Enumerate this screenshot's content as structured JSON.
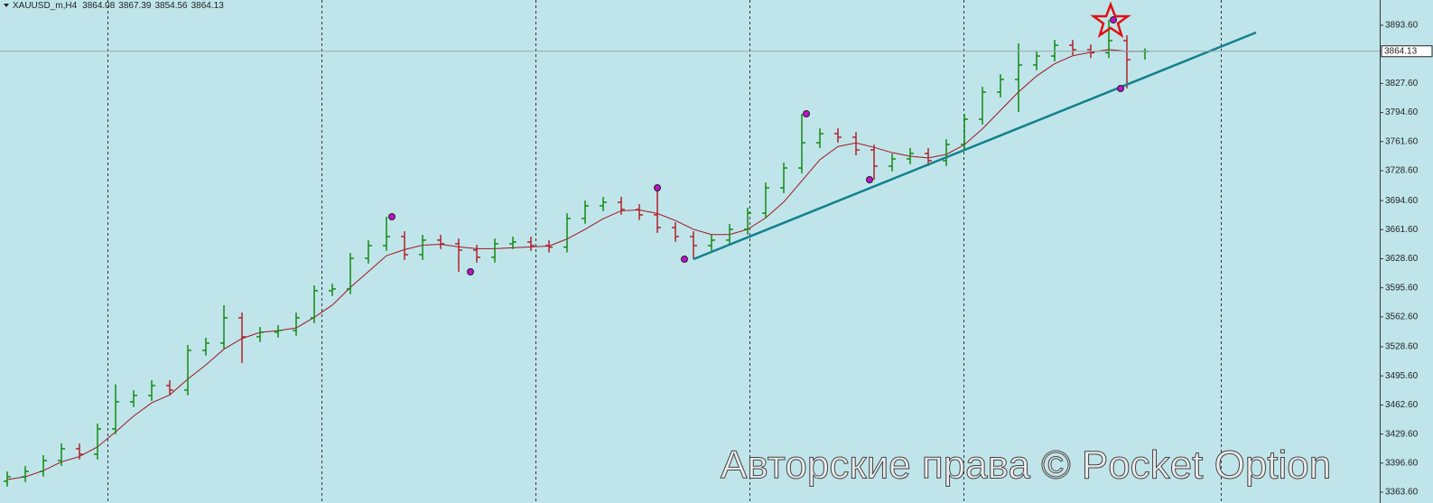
{
  "chart_data": {
    "type": "ohlc",
    "title": "XAUUSD_m,H4",
    "watermark": "Авторские права © Pocket Option",
    "up_color": "#138a13",
    "down_color": "#b3202a",
    "open": [
      3376.0,
      3381.1,
      3387.2,
      3399.5,
      3412.9,
      3406.7,
      3435.4,
      3466.2,
      3473.3,
      3484.6,
      3479.5,
      3524.6,
      3532.8,
      3561.5,
      3540.0,
      3545.1,
      3547.2,
      3561.5,
      3592.3,
      3594.3,
      3629.1,
      3643.5,
      3653.8,
      3633.2,
      3649.7,
      3645.6,
      3638.4,
      3630.2,
      3645.6,
      3647.6,
      3643.5,
      3641.8,
      3674.3,
      3688.6,
      3692.7,
      3684.5,
      3678.4,
      3664.0,
      3653.8,
      3643.5,
      3649.7,
      3662.0,
      3680.4,
      3709.1,
      3731.6,
      3760.3,
      3770.6,
      3766.5,
      3752.1,
      3733.7,
      3741.9,
      3748.1,
      3739.9,
      3758.3,
      3787.0,
      3817.7,
      3832.1,
      3848.5,
      3858.7,
      3871.0,
      3865.9,
      3862.4,
      3876.2,
      3864.08
    ],
    "high": [
      3387.1,
      3393.2,
      3405.5,
      3418.9,
      3418.9,
      3441.4,
      3486.0,
      3479.3,
      3490.6,
      3490.6,
      3530.6,
      3538.8,
      3575.8,
      3567.5,
      3551.1,
      3553.2,
      3567.5,
      3598.3,
      3600.3,
      3635.1,
      3649.5,
      3676.3,
      3659.8,
      3655.7,
      3655.7,
      3651.6,
      3644.4,
      3651.6,
      3653.6,
      3653.6,
      3649.5,
      3680.3,
      3694.6,
      3698.7,
      3698.7,
      3690.5,
      3709.1,
      3670.0,
      3659.8,
      3655.7,
      3668.0,
      3686.4,
      3715.1,
      3737.6,
      3793.1,
      3776.6,
      3776.6,
      3772.5,
      3758.1,
      3747.9,
      3754.1,
      3754.1,
      3764.3,
      3793.0,
      3823.7,
      3838.1,
      3873.0,
      3864.7,
      3877.0,
      3877.0,
      3871.9,
      3899.7,
      3882.2,
      3867.39
    ],
    "low": [
      3370.0,
      3375.1,
      3381.2,
      3393.5,
      3400.7,
      3400.7,
      3429.4,
      3460.2,
      3467.3,
      3473.5,
      3473.5,
      3518.6,
      3526.8,
      3510.3,
      3534.0,
      3539.1,
      3541.2,
      3555.5,
      3586.3,
      3588.3,
      3623.1,
      3637.5,
      3627.2,
      3627.2,
      3639.6,
      3613.8,
      3624.2,
      3624.2,
      3639.6,
      3637.5,
      3635.8,
      3635.8,
      3668.3,
      3682.6,
      3678.5,
      3672.4,
      3658.0,
      3647.8,
      3628.1,
      3637.5,
      3643.7,
      3656.0,
      3674.4,
      3703.1,
      3725.6,
      3754.3,
      3760.5,
      3746.1,
      3718.3,
      3727.7,
      3735.9,
      3733.9,
      3733.9,
      3752.3,
      3781.0,
      3811.7,
      3795.0,
      3842.5,
      3852.7,
      3859.9,
      3856.4,
      3856.4,
      3821.9,
      3854.56
    ],
    "close": [
      3381.1,
      3387.2,
      3399.5,
      3412.9,
      3406.7,
      3435.4,
      3466.2,
      3473.3,
      3484.6,
      3479.5,
      3524.6,
      3532.8,
      3561.5,
      3540.0,
      3545.1,
      3547.2,
      3561.5,
      3592.3,
      3594.3,
      3629.1,
      3643.5,
      3653.8,
      3633.2,
      3649.7,
      3645.6,
      3638.4,
      3630.2,
      3645.6,
      3647.6,
      3643.5,
      3641.8,
      3674.3,
      3688.6,
      3692.7,
      3684.5,
      3678.4,
      3664.0,
      3653.8,
      3643.5,
      3649.7,
      3662.0,
      3680.4,
      3709.1,
      3731.6,
      3760.3,
      3770.6,
      3766.5,
      3752.1,
      3733.7,
      3741.9,
      3748.1,
      3739.9,
      3758.3,
      3787.0,
      3817.7,
      3832.1,
      3848.5,
      3858.7,
      3871.0,
      3865.9,
      3862.4,
      3876.2,
      3854.6,
      3864.13
    ],
    "ma": {
      "color": "#a0141e",
      "values": [
        3378,
        3381,
        3388,
        3398,
        3404,
        3415,
        3432,
        3450,
        3465,
        3474,
        3492,
        3508,
        3526,
        3538,
        3545,
        3547,
        3550,
        3562,
        3576,
        3596,
        3614,
        3632,
        3639,
        3644,
        3645,
        3642,
        3640,
        3640,
        3641,
        3642,
        3643,
        3651,
        3662,
        3674,
        3683,
        3684,
        3680,
        3672,
        3662,
        3656,
        3656,
        3662,
        3675,
        3693,
        3717,
        3741,
        3756,
        3760,
        3755,
        3749,
        3745,
        3743,
        3747,
        3758,
        3776,
        3797,
        3818,
        3836,
        3850,
        3859,
        3863,
        3866,
        3864,
        3864
      ]
    },
    "ylim": [
      3351.3,
      3922.3
    ],
    "yticks": [
      {
        "value": 3893.6,
        "label": "3893.60"
      },
      {
        "value": 3827.6,
        "label": "3827.60"
      },
      {
        "value": 3794.6,
        "label": "3794.60"
      },
      {
        "value": 3761.6,
        "label": "3761.60"
      },
      {
        "value": 3728.6,
        "label": "3728.60"
      },
      {
        "value": 3694.6,
        "label": "3694.60"
      },
      {
        "value": 3661.6,
        "label": "3661.60"
      },
      {
        "value": 3628.6,
        "label": "3628.60"
      },
      {
        "value": 3595.6,
        "label": "3595.60"
      },
      {
        "value": 3562.6,
        "label": "3562.60"
      },
      {
        "value": 3528.6,
        "label": "3528.60"
      },
      {
        "value": 3495.6,
        "label": "3495.60"
      },
      {
        "value": 3462.6,
        "label": "3462.60"
      },
      {
        "value": 3429.6,
        "label": "3429.60"
      },
      {
        "value": 3396.6,
        "label": "3396.60"
      },
      {
        "value": 3363.6,
        "label": "3363.60"
      }
    ]
  }
}
